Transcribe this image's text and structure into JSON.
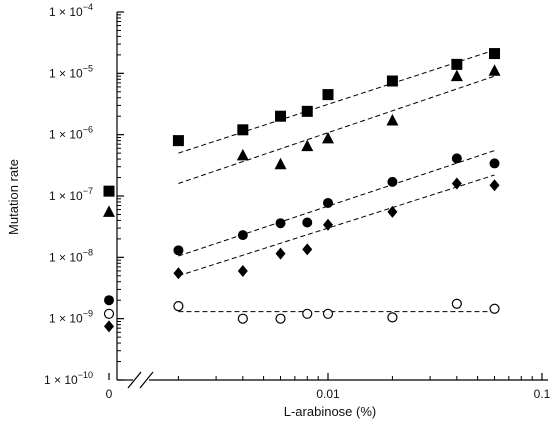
{
  "chart_data": {
    "type": "scatter",
    "xlabel": "L-arabinose (%)",
    "ylabel": "Mutation rate",
    "x_scale": "log",
    "y_scale": "log",
    "x_zero_category_label": "0",
    "xlim": [
      0.0015,
      0.1
    ],
    "ylim": [
      1e-10,
      0.0001
    ],
    "x_ticks": [
      {
        "value": 0.01,
        "label": "0.01"
      },
      {
        "value": 0.1,
        "label": "0.1"
      }
    ],
    "y_ticks": [
      {
        "value": 1e-10,
        "mantissa": "1 × 10",
        "exp": "−10"
      },
      {
        "value": 1e-09,
        "mantissa": "1 × 10",
        "exp": "−9"
      },
      {
        "value": 1e-08,
        "mantissa": "1 × 10",
        "exp": "−8"
      },
      {
        "value": 1e-07,
        "mantissa": "1 × 10",
        "exp": "−7"
      },
      {
        "value": 1e-06,
        "mantissa": "1 × 10",
        "exp": "−6"
      },
      {
        "value": 1e-05,
        "mantissa": "1 × 10",
        "exp": "−5"
      },
      {
        "value": 0.0001,
        "mantissa": "1 × 10",
        "exp": "−4"
      }
    ],
    "axis_break": true,
    "grid": false,
    "series": [
      {
        "marker": "square",
        "color": "#000000",
        "zero_value": 1.2e-07,
        "x": [
          0.002,
          0.004,
          0.006,
          0.008,
          0.01,
          0.02,
          0.04,
          0.06
        ],
        "y": [
          8e-07,
          1.2e-06,
          2e-06,
          2.4e-06,
          4.5e-06,
          7.5e-06,
          1.4e-05,
          2.1e-05
        ],
        "fit": {
          "x": [
            0.002,
            0.06
          ],
          "y": [
            5e-07,
            2.4e-05
          ]
        }
      },
      {
        "marker": "triangle",
        "color": "#000000",
        "zero_value": 5.5e-08,
        "x": [
          0.002,
          0.004,
          0.006,
          0.008,
          0.01,
          0.02,
          0.04,
          0.06
        ],
        "y": [
          null,
          4.6e-07,
          3.3e-07,
          6.5e-07,
          8.7e-07,
          1.7e-06,
          9e-06,
          1.1e-05
        ],
        "fit": {
          "x": [
            0.002,
            0.06
          ],
          "y": [
            1.6e-07,
            9e-06
          ]
        }
      },
      {
        "marker": "circle-filled",
        "color": "#000000",
        "zero_value": 2e-09,
        "x": [
          0.002,
          0.004,
          0.006,
          0.008,
          0.01,
          0.02,
          0.04,
          0.06
        ],
        "y": [
          1.3e-08,
          2.3e-08,
          3.6e-08,
          3.7e-08,
          7.7e-08,
          1.7e-07,
          4.1e-07,
          3.4e-07
        ],
        "fit": {
          "x": [
            0.002,
            0.06
          ],
          "y": [
            1.05e-08,
            5.5e-07
          ]
        }
      },
      {
        "marker": "diamond",
        "color": "#000000",
        "zero_value": 7.5e-10,
        "x": [
          0.002,
          0.004,
          0.006,
          0.008,
          0.01,
          0.02,
          0.04,
          0.06
        ],
        "y": [
          5.5e-09,
          6e-09,
          1.15e-08,
          1.35e-08,
          3.4e-08,
          5.5e-08,
          1.6e-07,
          1.5e-07
        ],
        "fit": {
          "x": [
            0.002,
            0.06
          ],
          "y": [
            5e-09,
            2.2e-07
          ]
        }
      },
      {
        "marker": "circle-open",
        "color": "#000000",
        "zero_value": 1.2e-09,
        "x": [
          0.002,
          0.004,
          0.006,
          0.008,
          0.01,
          0.02,
          0.04,
          0.06
        ],
        "y": [
          1.6e-09,
          1e-09,
          1e-09,
          1.2e-09,
          1.2e-09,
          1.05e-09,
          1.75e-09,
          1.45e-09
        ],
        "fit": {
          "x": [
            0.002,
            0.06
          ],
          "y": [
            1.3e-09,
            1.3e-09
          ]
        }
      }
    ]
  }
}
